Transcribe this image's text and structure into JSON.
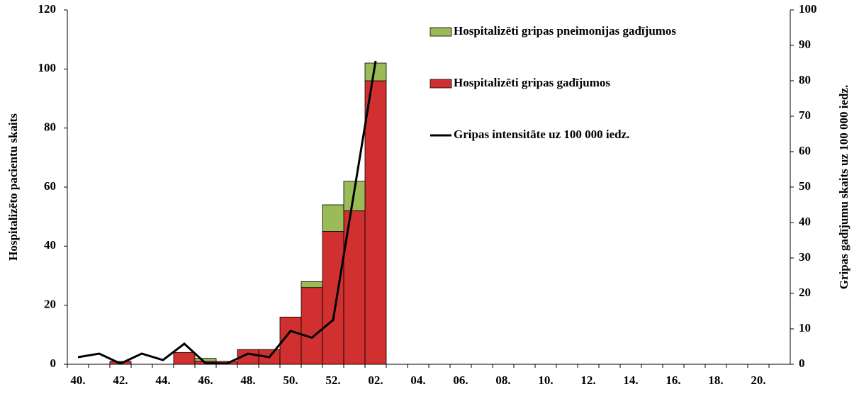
{
  "chart_data": {
    "type": "bar",
    "categories": [
      "40.",
      null,
      "42.",
      null,
      "44.",
      null,
      "46.",
      null,
      "48.",
      null,
      "50.",
      null,
      "52.",
      null,
      "02.",
      null,
      "04.",
      null,
      "06.",
      null,
      "08.",
      null,
      "10.",
      null,
      "12.",
      null,
      "14.",
      null,
      "16.",
      null,
      "18.",
      null,
      "20.",
      null
    ],
    "series": [
      {
        "name": "Hospitalizēti gripas gadījumos",
        "color": "#d03030",
        "stack": true,
        "values": [
          0,
          0,
          1,
          0,
          0,
          4,
          1,
          1,
          5,
          5,
          16,
          26,
          45,
          52,
          96,
          null,
          null,
          null,
          null,
          null,
          null,
          null,
          null,
          null,
          null,
          null,
          null,
          null,
          null,
          null,
          null,
          null,
          null,
          null
        ]
      },
      {
        "name": "Hospitalizēti gripas pneimonijas gadījumos",
        "color": "#9bbb59",
        "stack": true,
        "values": [
          0,
          0,
          0,
          0,
          0,
          0,
          1,
          0,
          0,
          0,
          0,
          2,
          9,
          10,
          6,
          null,
          null,
          null,
          null,
          null,
          null,
          null,
          null,
          null,
          null,
          null,
          null,
          null,
          null,
          null,
          null,
          null,
          null,
          null
        ]
      },
      {
        "name": "Gripas intensitāte uz 100 000 iedz.",
        "color": "#000000",
        "type": "line",
        "axis": "y2",
        "values": [
          2,
          3,
          0.2,
          3,
          1.2,
          5.8,
          0.3,
          0.2,
          3,
          2,
          9.4,
          7.5,
          12.5,
          49,
          85.6,
          null,
          null,
          null,
          null,
          null,
          null,
          null,
          null,
          null,
          null,
          null,
          null,
          null,
          null,
          null,
          null,
          null,
          null,
          null
        ]
      }
    ],
    "legend_order": [
      1,
      0,
      2
    ],
    "ylabel": "Hospitalizēto pacientu skaits",
    "y2label": "Gripas gadījumu skaits uz 100 000 iedz.",
    "ylim": [
      0,
      120
    ],
    "yticks": [
      0,
      20,
      40,
      60,
      80,
      100,
      120
    ],
    "y2lim": [
      0,
      100
    ],
    "y2ticks": [
      0,
      10,
      20,
      30,
      40,
      50,
      60,
      70,
      80,
      90,
      100
    ]
  }
}
